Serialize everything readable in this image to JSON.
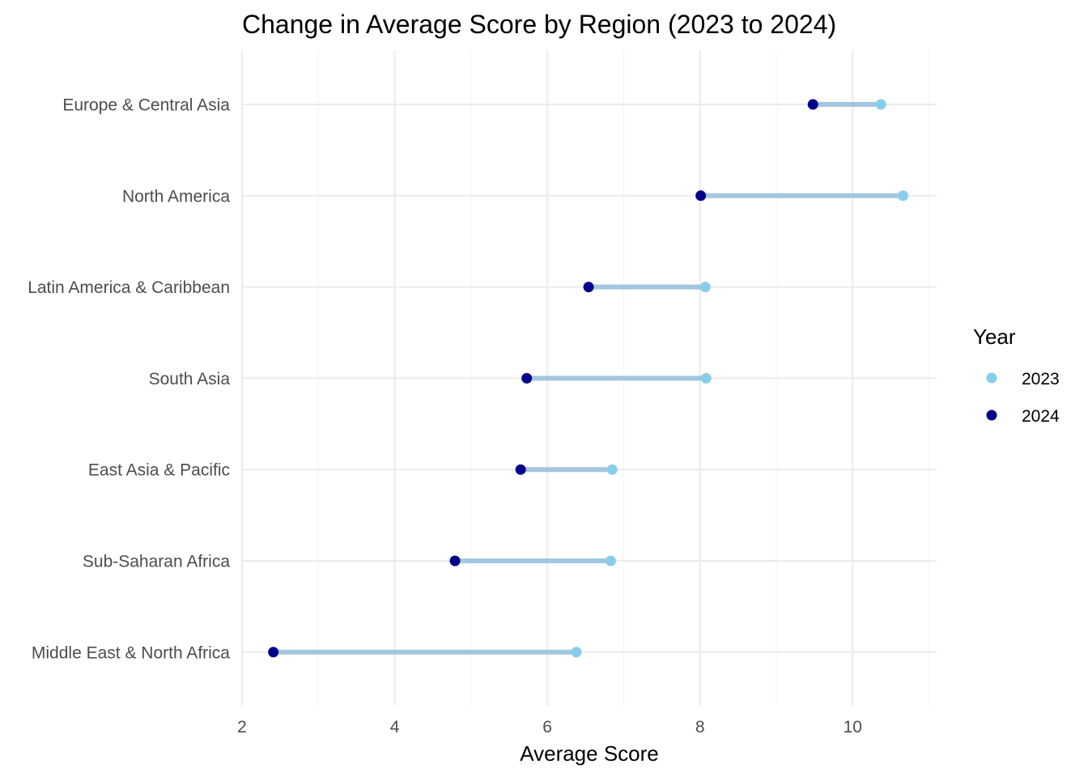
{
  "chart_data": {
    "type": "dumbbell",
    "title": "Change in Average Score by Region (2023 to 2024)",
    "xlabel": "Average Score",
    "ylabel": "",
    "xlim": [
      2,
      11.1
    ],
    "x_ticks": [
      2,
      4,
      6,
      8,
      10
    ],
    "grid": true,
    "legend": {
      "title": "Year",
      "position": "right",
      "entries": [
        {
          "label": "2023",
          "color": "#87CEEB"
        },
        {
          "label": "2024",
          "color": "#00008B"
        }
      ]
    },
    "segment_color": "#a3c6e0",
    "categories": [
      "Europe & Central Asia",
      "North America",
      "Latin America & Caribbean",
      "South Asia",
      "East Asia & Pacific",
      "Sub-Saharan Africa",
      "Middle East & North Africa"
    ],
    "series": [
      {
        "name": "2023",
        "color": "#87CEEB",
        "values": [
          10.37,
          10.66,
          8.07,
          8.08,
          6.85,
          6.83,
          6.38
        ]
      },
      {
        "name": "2024",
        "color": "#00008B",
        "values": [
          9.48,
          8.01,
          6.54,
          5.73,
          5.65,
          4.79,
          2.41
        ]
      }
    ]
  }
}
